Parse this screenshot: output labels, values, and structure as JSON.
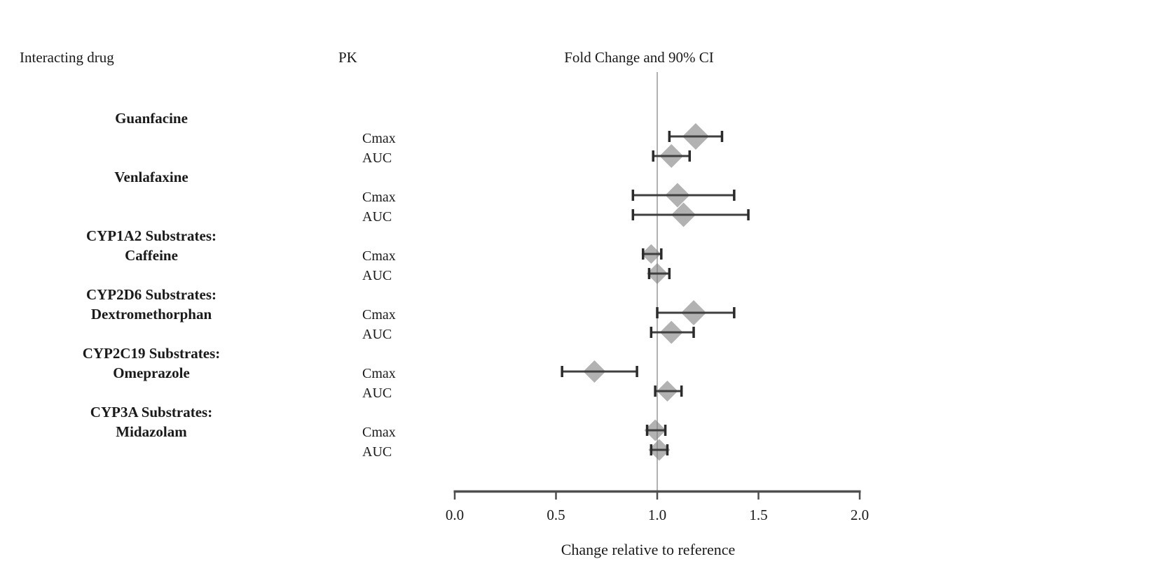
{
  "figure": {
    "columns": {
      "interacting_drug": "Interacting drug",
      "pk": "PK",
      "plot": "Fold Change and 90% CI"
    }
  },
  "chart_data": {
    "type": "forest",
    "title": "Fold Change and 90% CI",
    "xlabel": "Change relative to reference",
    "xlim": [
      0.0,
      2.0
    ],
    "x_ticks": [
      0.0,
      0.5,
      1.0,
      1.5,
      2.0
    ],
    "x_tick_labels": [
      "0.0",
      "0.5",
      "1.0",
      "1.5",
      "2.0"
    ],
    "reference_line": 1.0,
    "ci_level": "90%",
    "marker_shape": "diamond",
    "groups": [
      {
        "drug_lines": [
          "Guanfacine"
        ],
        "rows": [
          {
            "pk": "Cmax",
            "value": 1.19,
            "ci_low": 1.06,
            "ci_high": 1.32,
            "marker_size": 38
          },
          {
            "pk": "AUC",
            "value": 1.07,
            "ci_low": 0.98,
            "ci_high": 1.16,
            "marker_size": 34
          }
        ]
      },
      {
        "drug_lines": [
          "Venlafaxine"
        ],
        "rows": [
          {
            "pk": "Cmax",
            "value": 1.1,
            "ci_low": 0.88,
            "ci_high": 1.38,
            "marker_size": 35
          },
          {
            "pk": "AUC",
            "value": 1.13,
            "ci_low": 0.88,
            "ci_high": 1.45,
            "marker_size": 35
          }
        ]
      },
      {
        "drug_lines": [
          "CYP1A2 Substrates:",
          "Caffeine"
        ],
        "rows": [
          {
            "pk": "Cmax",
            "value": 0.97,
            "ci_low": 0.93,
            "ci_high": 1.02,
            "marker_size": 28
          },
          {
            "pk": "AUC",
            "value": 1.0,
            "ci_low": 0.96,
            "ci_high": 1.06,
            "marker_size": 30
          }
        ]
      },
      {
        "drug_lines": [
          "CYP2D6 Substrates:",
          "Dextromethorphan"
        ],
        "rows": [
          {
            "pk": "Cmax",
            "value": 1.18,
            "ci_low": 1.0,
            "ci_high": 1.38,
            "marker_size": 36
          },
          {
            "pk": "AUC",
            "value": 1.07,
            "ci_low": 0.97,
            "ci_high": 1.18,
            "marker_size": 33
          }
        ]
      },
      {
        "drug_lines": [
          "CYP2C19 Substrates:",
          "Omeprazole"
        ],
        "rows": [
          {
            "pk": "Cmax",
            "value": 0.69,
            "ci_low": 0.53,
            "ci_high": 0.9,
            "marker_size": 32
          },
          {
            "pk": "AUC",
            "value": 1.05,
            "ci_low": 0.99,
            "ci_high": 1.12,
            "marker_size": 30
          }
        ]
      },
      {
        "drug_lines": [
          "CYP3A Substrates:",
          "Midazolam"
        ],
        "rows": [
          {
            "pk": "Cmax",
            "value": 0.99,
            "ci_low": 0.95,
            "ci_high": 1.04,
            "marker_size": 31
          },
          {
            "pk": "AUC",
            "value": 1.01,
            "ci_low": 0.97,
            "ci_high": 1.05,
            "marker_size": 31
          }
        ]
      }
    ]
  },
  "colors": {
    "marker_fill": "#a5a5a5",
    "error_bar": "#3f3f3f",
    "error_cap": "#2b2b2b",
    "reference_line": "#7f7f7f",
    "axis": "#4f4f4f",
    "text": "#1a1a1a"
  }
}
